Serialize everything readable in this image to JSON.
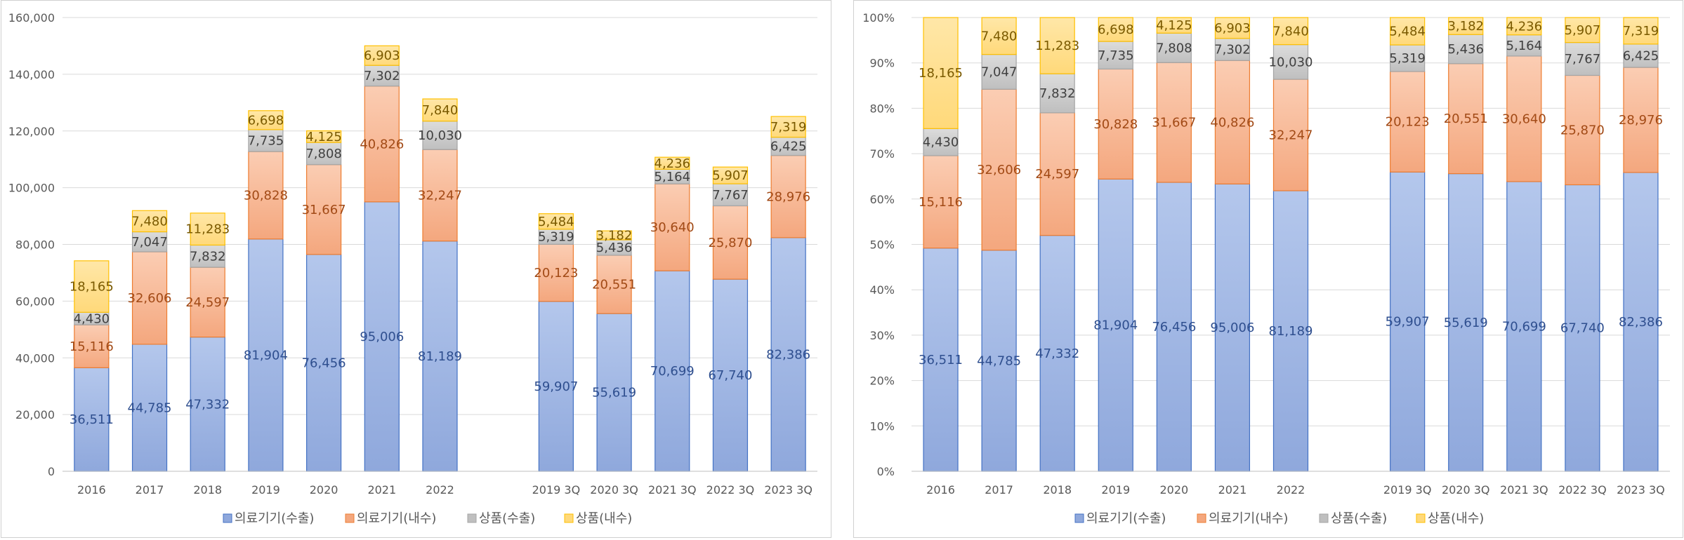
{
  "colors": {
    "series": [
      "#8fa8dc",
      "#f4a77e",
      "#bfbfbf",
      "#ffd97a"
    ],
    "series_light": [
      "#b4c7ec",
      "#fbcdb3",
      "#dcdcdc",
      "#ffe7a8"
    ],
    "borders": [
      "#4472c4",
      "#ed7d31",
      "#a5a5a5",
      "#ffc000"
    ],
    "grid": "#d9d9d9"
  },
  "chart_data": [
    {
      "type": "bar",
      "stacked": true,
      "categories": [
        "2016",
        "2017",
        "2018",
        "2019",
        "2020",
        "2021",
        "2022",
        "",
        "2019 3Q",
        "2020 3Q",
        "2021 3Q",
        "2022 3Q",
        "2023 3Q"
      ],
      "series": [
        {
          "name": "의료기기(수출)",
          "values": [
            36511,
            44785,
            47332,
            81904,
            76456,
            95006,
            81189,
            null,
            59907,
            55619,
            70699,
            67740,
            82386
          ]
        },
        {
          "name": "의료기기(내수)",
          "values": [
            15116,
            32606,
            24597,
            30828,
            31667,
            40826,
            32247,
            null,
            20123,
            20551,
            30640,
            25870,
            28976
          ]
        },
        {
          "name": "상품(수출)",
          "values": [
            4430,
            7047,
            7832,
            7735,
            7808,
            7302,
            10030,
            null,
            5319,
            5436,
            5164,
            7767,
            6425
          ]
        },
        {
          "name": "상품(내수)",
          "values": [
            18165,
            7480,
            11283,
            6698,
            4125,
            6903,
            7840,
            null,
            5484,
            3182,
            4236,
            5907,
            7319
          ]
        }
      ],
      "ylim": [
        0,
        160000
      ],
      "yticks": [
        "0",
        "20,000",
        "40,000",
        "60,000",
        "80,000",
        "100,000",
        "120,000",
        "140,000",
        "160,000"
      ],
      "grid": true,
      "legend": "bottom"
    },
    {
      "type": "bar",
      "stacked": true,
      "normalized": true,
      "categories": [
        "2016",
        "2017",
        "2018",
        "2019",
        "2020",
        "2021",
        "2022",
        "",
        "2019 3Q",
        "2020 3Q",
        "2021 3Q",
        "2022 3Q",
        "2023 3Q"
      ],
      "series": [
        {
          "name": "의료기기(수출)",
          "values": [
            36511,
            44785,
            47332,
            81904,
            76456,
            95006,
            81189,
            null,
            59907,
            55619,
            70699,
            67740,
            82386
          ]
        },
        {
          "name": "의료기기(내수)",
          "values": [
            15116,
            32606,
            24597,
            30828,
            31667,
            40826,
            32247,
            null,
            20123,
            20551,
            30640,
            25870,
            28976
          ]
        },
        {
          "name": "상품(수출)",
          "values": [
            4430,
            7047,
            7832,
            7735,
            7808,
            7302,
            10030,
            null,
            5319,
            5436,
            5164,
            7767,
            6425
          ]
        },
        {
          "name": "상품(내수)",
          "values": [
            18165,
            7480,
            11283,
            6698,
            4125,
            6903,
            7840,
            null,
            5484,
            3182,
            4236,
            5907,
            7319
          ]
        }
      ],
      "ylim": [
        0,
        100
      ],
      "yticks": [
        "0%",
        "10%",
        "20%",
        "30%",
        "40%",
        "50%",
        "60%",
        "70%",
        "80%",
        "90%",
        "100%"
      ],
      "grid": true,
      "legend": "bottom"
    }
  ]
}
